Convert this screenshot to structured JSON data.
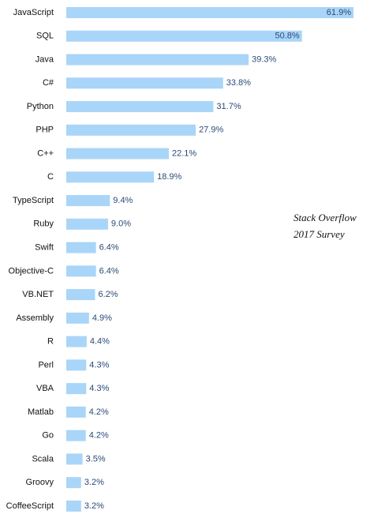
{
  "chart_data": {
    "type": "bar",
    "orientation": "horizontal",
    "categories": [
      "JavaScript",
      "SQL",
      "Java",
      "C#",
      "Python",
      "PHP",
      "C++",
      "C",
      "TypeScript",
      "Ruby",
      "Swift",
      "Objective-C",
      "VB.NET",
      "Assembly",
      "R",
      "Perl",
      "VBA",
      "Matlab",
      "Go",
      "Scala",
      "Groovy",
      "CoffeeScript"
    ],
    "values": [
      61.9,
      50.8,
      39.3,
      33.8,
      31.7,
      27.9,
      22.1,
      18.9,
      9.4,
      9.0,
      6.4,
      6.4,
      6.2,
      4.9,
      4.4,
      4.3,
      4.3,
      4.2,
      4.2,
      3.5,
      3.2,
      3.2
    ],
    "value_labels": [
      "61.9%",
      "50.8%",
      "39.3%",
      "33.8%",
      "31.7%",
      "27.9%",
      "22.1%",
      "18.9%",
      "9.4%",
      "9.0%",
      "6.4%",
      "6.4%",
      "6.2%",
      "4.9%",
      "4.4%",
      "4.3%",
      "4.3%",
      "4.2%",
      "4.2%",
      "3.5%",
      "3.2%",
      "3.2%"
    ],
    "color": "#a9d5f8",
    "annotation": [
      "Stack Overflow",
      "2017 Survey"
    ]
  }
}
